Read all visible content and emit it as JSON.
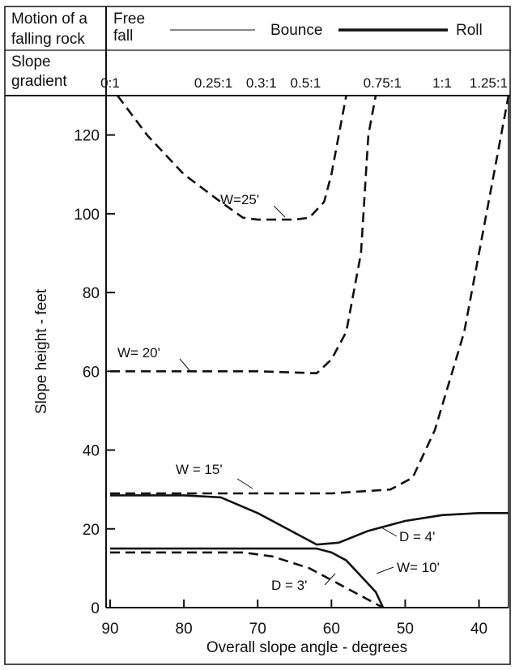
{
  "header": {
    "motion_label_line1": "Motion of a",
    "motion_label_line2": "falling rock",
    "free_fall_line1": "Free",
    "free_fall_line2": "fall",
    "bounce": "Bounce",
    "roll": "Roll",
    "slope_label_line1": "Slope",
    "slope_label_line2": "gradient",
    "gradients": [
      {
        "label": "0:1",
        "angle": 90
      },
      {
        "label": "0.25:1",
        "angle": 76
      },
      {
        "label": "0.3:1",
        "angle": 69.5
      },
      {
        "label": "0.5:1",
        "angle": 63.5
      },
      {
        "label": "0.75:1",
        "angle": 53.1
      },
      {
        "label": "1:1",
        "angle": 45
      },
      {
        "label": "1.25:1",
        "angle": 38.7
      }
    ]
  },
  "chart_data": {
    "type": "line",
    "xlabel": "Overall slope angle  -  degrees",
    "ylabel": "Slope height  -  feet",
    "xlim": [
      90,
      36
    ],
    "ylim": [
      0,
      130
    ],
    "xticks": [
      90,
      80,
      70,
      60,
      50,
      40
    ],
    "yticks": [
      0,
      20,
      40,
      60,
      80,
      100,
      120
    ],
    "grid": false,
    "series": [
      {
        "name": "W=25'",
        "style": "dashed",
        "points": [
          [
            89,
            130
          ],
          [
            85,
            120
          ],
          [
            80,
            110
          ],
          [
            75,
            103
          ],
          [
            72,
            99
          ],
          [
            70,
            98.5
          ],
          [
            65,
            98.5
          ],
          [
            63,
            99
          ],
          [
            61,
            103
          ],
          [
            60,
            110
          ],
          [
            59,
            120
          ],
          [
            58,
            130
          ]
        ]
      },
      {
        "name": "W= 20'",
        "style": "dashed",
        "points": [
          [
            90,
            60
          ],
          [
            80,
            60
          ],
          [
            70,
            60
          ],
          [
            62,
            59.5
          ],
          [
            60,
            63
          ],
          [
            58,
            70
          ],
          [
            56,
            90
          ],
          [
            55,
            120
          ],
          [
            54,
            130
          ]
        ]
      },
      {
        "name": "W = 15'",
        "style": "dashed",
        "points": [
          [
            90,
            29
          ],
          [
            80,
            29
          ],
          [
            70,
            29
          ],
          [
            60,
            29
          ],
          [
            52,
            30
          ],
          [
            49,
            33
          ],
          [
            46,
            45
          ],
          [
            42,
            70
          ],
          [
            39,
            100
          ],
          [
            37,
            120
          ],
          [
            36,
            130
          ]
        ]
      },
      {
        "name": "W= 10'",
        "style": "dashed",
        "points": [
          [
            90,
            14
          ],
          [
            80,
            14
          ],
          [
            72,
            14
          ],
          [
            68,
            13
          ],
          [
            63,
            10
          ],
          [
            59,
            6
          ],
          [
            55,
            2
          ],
          [
            53,
            0
          ]
        ]
      },
      {
        "name": "D = 4'",
        "style": "solid",
        "points": [
          [
            90,
            28.5
          ],
          [
            80,
            28.5
          ],
          [
            75,
            28
          ],
          [
            70,
            24
          ],
          [
            65,
            19
          ],
          [
            62,
            16
          ],
          [
            59,
            16.5
          ],
          [
            55,
            19.5
          ],
          [
            50,
            22
          ],
          [
            45,
            23.5
          ],
          [
            40,
            24
          ],
          [
            36,
            24
          ]
        ]
      },
      {
        "name": "D = 3'",
        "style": "solid",
        "points": [
          [
            90,
            15
          ],
          [
            80,
            15
          ],
          [
            65,
            15
          ],
          [
            62,
            15
          ],
          [
            60,
            14
          ],
          [
            58,
            12
          ],
          [
            56,
            8
          ],
          [
            54,
            4
          ],
          [
            53,
            0
          ]
        ]
      }
    ]
  }
}
